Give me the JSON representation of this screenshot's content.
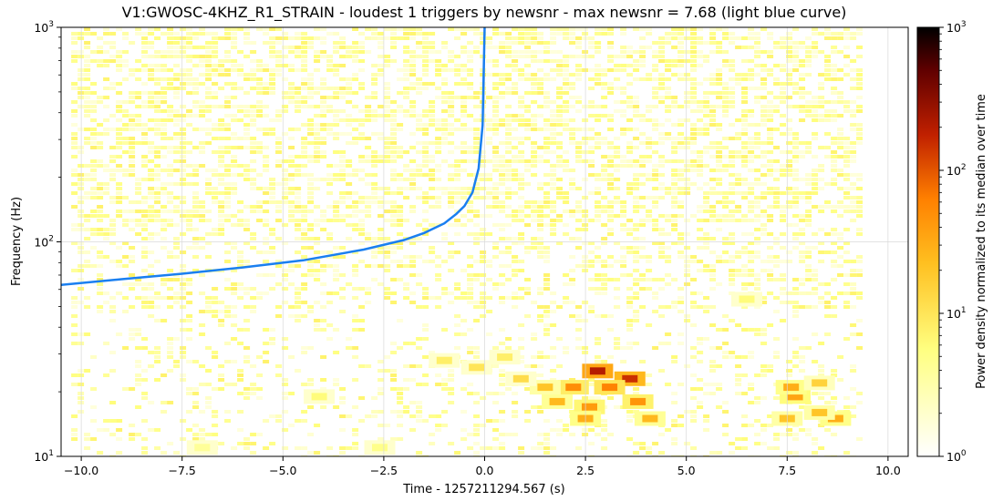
{
  "chart_data": {
    "type": "heatmap",
    "title": "V1:GWOSC-4KHZ_R1_STRAIN - loudest 1 triggers by newsnr - max newsnr = 7.68 (light blue curve)",
    "xlabel": "Time - 1257211294.567 (s)",
    "ylabel": "Frequency (Hz)",
    "xlim": [
      -10.5,
      10.5
    ],
    "ylim": [
      10,
      1000
    ],
    "yscale": "log",
    "x_ticks": [
      -10.0,
      -7.5,
      -5.0,
      -2.5,
      0.0,
      2.5,
      5.0,
      7.5,
      10.0
    ],
    "x_tick_labels": [
      "−10.0",
      "−7.5",
      "−5.0",
      "−2.5",
      "0.0",
      "2.5",
      "5.0",
      "7.5",
      "10.0"
    ],
    "y_ticks": [
      10,
      100,
      1000
    ],
    "y_tick_labels": [
      [
        "10",
        "1"
      ],
      [
        "10",
        "2"
      ],
      [
        "10",
        "3"
      ]
    ],
    "grid": true,
    "data_time_range": [
      -10.25,
      9.25
    ],
    "colorbar": {
      "label": "Power density normalized to its median over time",
      "scale": "log",
      "range": [
        1,
        1000
      ],
      "ticks": [
        1,
        10,
        100,
        1000
      ],
      "tick_labels": [
        [
          "10",
          "0"
        ],
        [
          "10",
          "1"
        ],
        [
          "10",
          "2"
        ],
        [
          "10",
          "3"
        ]
      ],
      "colormap": "afmhot_r"
    },
    "hotspots": [
      {
        "t": 2.8,
        "f": 25,
        "level": 200
      },
      {
        "t": 3.6,
        "f": 23,
        "level": 150
      },
      {
        "t": 3.1,
        "f": 21,
        "level": 60
      },
      {
        "t": 2.2,
        "f": 21,
        "level": 50
      },
      {
        "t": 1.8,
        "f": 18,
        "level": 25
      },
      {
        "t": 2.6,
        "f": 17,
        "level": 40
      },
      {
        "t": 3.8,
        "f": 18,
        "level": 45
      },
      {
        "t": 2.5,
        "f": 15,
        "level": 30
      },
      {
        "t": 4.1,
        "f": 15,
        "level": 25
      },
      {
        "t": 1.5,
        "f": 21,
        "level": 20
      },
      {
        "t": 0.9,
        "f": 23,
        "level": 12
      },
      {
        "t": 7.7,
        "f": 19,
        "level": 35
      },
      {
        "t": 7.6,
        "f": 21,
        "level": 30
      },
      {
        "t": 8.7,
        "f": 15,
        "level": 30
      },
      {
        "t": 8.3,
        "f": 16,
        "level": 20
      },
      {
        "t": 7.5,
        "f": 15,
        "level": 20
      },
      {
        "t": 8.3,
        "f": 22,
        "level": 15
      },
      {
        "t": -1.0,
        "f": 28,
        "level": 8
      },
      {
        "t": -0.2,
        "f": 26,
        "level": 10
      },
      {
        "t": 0.5,
        "f": 29,
        "level": 8
      },
      {
        "t": -4.1,
        "f": 19,
        "level": 6
      },
      {
        "t": -2.6,
        "f": 11,
        "level": 5
      },
      {
        "t": -7.0,
        "f": 11,
        "level": 4
      },
      {
        "t": 6.5,
        "f": 54,
        "level": 6
      }
    ],
    "series": [
      {
        "name": "newsnr = 7.68",
        "color": "#1a7ff0",
        "t": [
          -10.5,
          -9.0,
          -7.5,
          -6.0,
          -4.5,
          -3.0,
          -2.0,
          -1.5,
          -1.0,
          -0.7,
          -0.5,
          -0.3,
          -0.15,
          -0.05,
          0.0
        ],
        "f": [
          63,
          67,
          71,
          76,
          82,
          92,
          102,
          110,
          122,
          135,
          147,
          170,
          220,
          350,
          1000
        ]
      }
    ]
  }
}
